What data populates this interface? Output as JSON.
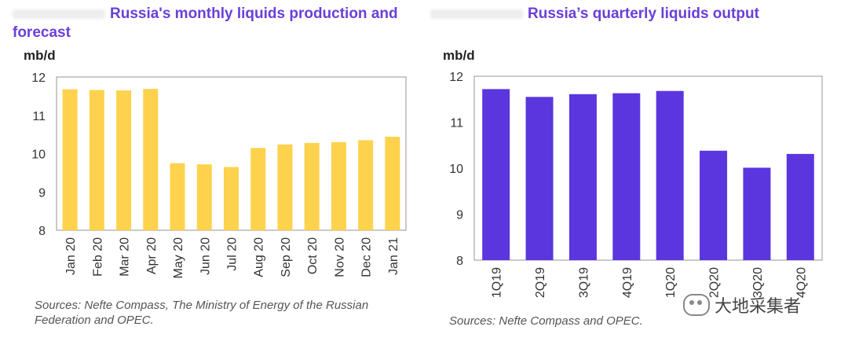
{
  "charts": {
    "left": {
      "title": "Russia's monthly liquids production and forecast",
      "unit": "mb/d",
      "source": "Sources: Nefte Compass, The Ministry of Energy of the Russian Federation and OPEC."
    },
    "right": {
      "title": "Russia’s quarterly liquids output",
      "unit": "mb/d",
      "source": "Sources: Nefte Compass and OPEC."
    }
  },
  "watermark": {
    "text": "大地采集者",
    "icon": "wechat-icon"
  },
  "chart_data": [
    {
      "type": "bar",
      "title": "Russia's monthly liquids production and forecast",
      "ylabel": "mb/d",
      "categories": [
        "Jan 20",
        "Feb 20",
        "Mar 20",
        "Apr 20",
        "May 20",
        "Jun 20",
        "Jul 20",
        "Aug 20",
        "Sep 20",
        "Oct 20",
        "Nov 20",
        "Dec 20",
        "Jan 21"
      ],
      "values": [
        11.68,
        11.66,
        11.65,
        11.69,
        9.75,
        9.72,
        9.65,
        10.15,
        10.24,
        10.28,
        10.3,
        10.35,
        10.44
      ],
      "ylim": [
        8,
        12
      ],
      "yticks": [
        8,
        9,
        10,
        11,
        12
      ],
      "color": "#ffd24d",
      "grid": false
    },
    {
      "type": "bar",
      "title": "Russia’s quarterly liquids output",
      "ylabel": "mb/d",
      "categories": [
        "1Q19",
        "2Q19",
        "3Q19",
        "4Q19",
        "1Q20",
        "2Q20",
        "3Q20",
        "4Q20"
      ],
      "values": [
        11.72,
        11.55,
        11.61,
        11.63,
        11.68,
        10.38,
        10.01,
        10.31
      ],
      "ylim": [
        8,
        12
      ],
      "yticks": [
        8,
        9,
        10,
        11,
        12
      ],
      "color": "#5b36df",
      "grid": false
    }
  ]
}
